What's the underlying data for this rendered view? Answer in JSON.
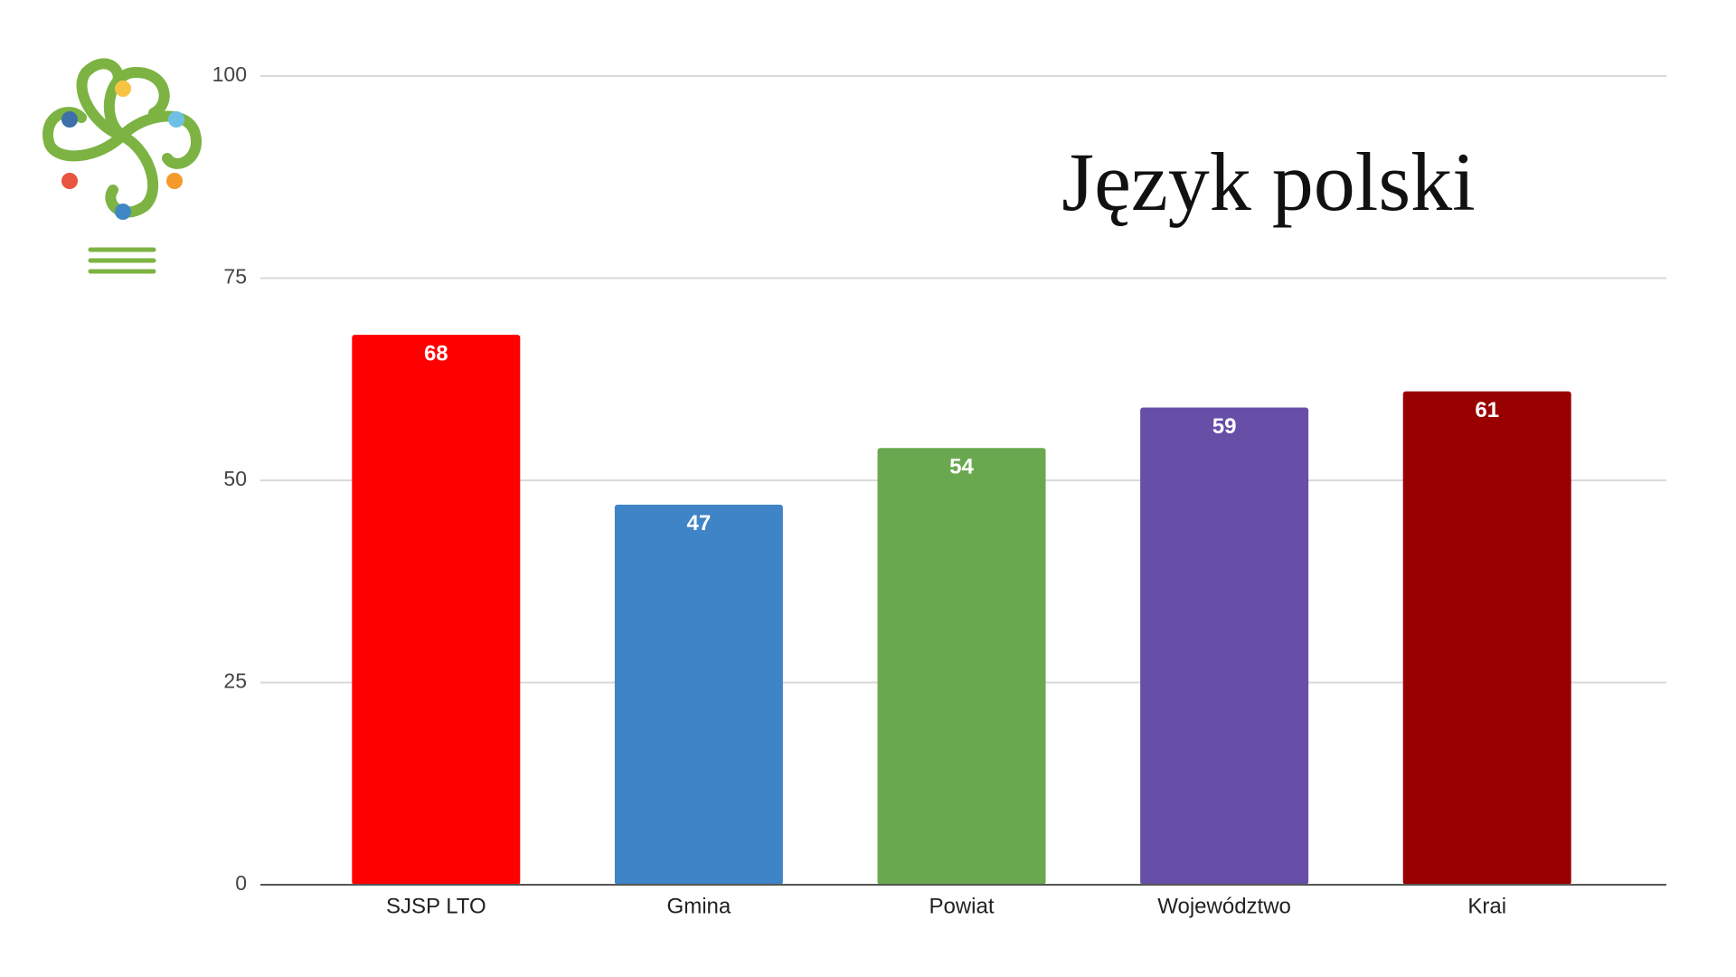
{
  "chart_data": {
    "type": "bar",
    "title": "Język polski",
    "categories": [
      "SJSP LTO",
      "Gmina",
      "Powiat",
      "Województwo",
      "Krai"
    ],
    "values": [
      68,
      47,
      54,
      59,
      61
    ],
    "colors": [
      "#ff0000",
      "#3f84c7",
      "#6aa84f",
      "#674ea7",
      "#990000"
    ],
    "ylim": [
      0,
      100
    ],
    "yticks": [
      0,
      25,
      50,
      75,
      100
    ],
    "grid": true
  }
}
